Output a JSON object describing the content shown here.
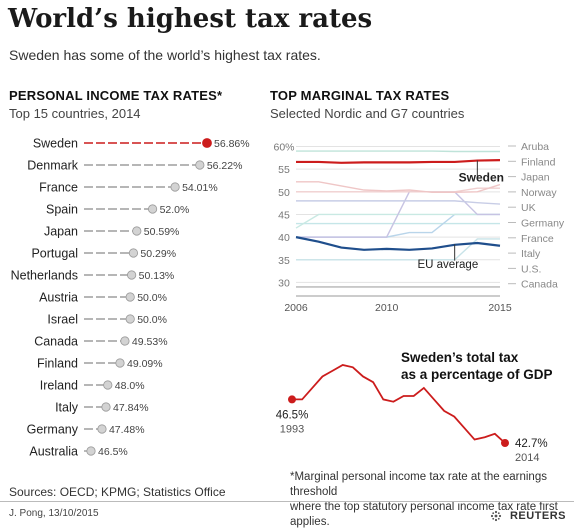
{
  "header": {
    "title": "World’s highest tax rates",
    "subtitle": "Sweden has some of the world’s highest tax rates."
  },
  "left": {
    "title": "PERSONAL INCOME TAX RATES*",
    "subtitle": "Top 15 countries, 2014"
  },
  "right": {
    "title": "TOP MARGINAL TAX RATES",
    "subtitle": "Selected Nordic and G7 countries",
    "sweden_label": "Sweden",
    "eu_label": "EU average"
  },
  "gdp": {
    "title_line1": "Sweden’s total tax",
    "title_line2": "as a percentage of GDP",
    "start_value": "46.5%",
    "start_year": "1993",
    "end_value": "42.7%",
    "end_year": "2014"
  },
  "footnote": {
    "line1": "*Marginal personal income tax rate at the earnings threshold",
    "line2": "where the top statutory personal income tax rate first applies."
  },
  "sources": "Sources: OECD; KPMG; Statistics Office",
  "credit": "J. Pong, 13/10/2015",
  "logo": "REUTERS",
  "colors": {
    "red": "#cc1c1c",
    "grey": "#aaaaaa",
    "blue": "#1f4e8c"
  },
  "chart_data": [
    {
      "type": "bar",
      "title": "PERSONAL INCOME TAX RATES*",
      "subtitle": "Top 15 countries, 2014",
      "categories": [
        "Sweden",
        "Denmark",
        "France",
        "Spain",
        "Japan",
        "Portugal",
        "Netherlands",
        "Austria",
        "Israel",
        "Canada",
        "Finland",
        "Ireland",
        "Italy",
        "Germany",
        "Australia"
      ],
      "values": [
        56.86,
        56.22,
        54.01,
        52.0,
        50.59,
        50.29,
        50.13,
        50.0,
        50.0,
        49.53,
        49.09,
        48.0,
        47.84,
        47.48,
        46.5
      ],
      "labels": [
        "56.86%",
        "56.22%",
        "54.01%",
        "52.0%",
        "50.59%",
        "50.29%",
        "50.13%",
        "50.0%",
        "50.0%",
        "49.53%",
        "49.09%",
        "48.0%",
        "47.84%",
        "47.48%",
        "46.5%"
      ],
      "highlight": "Sweden"
    },
    {
      "type": "line",
      "title": "TOP MARGINAL TAX RATES",
      "subtitle": "Selected Nordic and G7 countries",
      "x": [
        2006,
        2007,
        2008,
        2009,
        2010,
        2011,
        2012,
        2013,
        2014,
        2015
      ],
      "xticks": [
        "2006",
        "2010",
        "2015"
      ],
      "yticks": [
        "60%",
        "55",
        "50",
        "45",
        "40",
        "35",
        "30"
      ],
      "ylim": [
        27,
        61
      ],
      "series": [
        {
          "name": "Sweden",
          "values": [
            56.6,
            56.6,
            56.4,
            56.5,
            56.5,
            56.5,
            56.6,
            56.6,
            56.9,
            57.0
          ],
          "highlight": true
        },
        {
          "name": "Aruba",
          "values": [
            59.0,
            59.0,
            59.0,
            59.0,
            59.0,
            59.0,
            59.0,
            58.9,
            58.9,
            58.9
          ]
        },
        {
          "name": "Finland",
          "values": [
            52.2,
            52.2,
            51.3,
            50.4,
            50.2,
            50.4,
            49.9,
            49.9,
            50.0,
            51.6
          ]
        },
        {
          "name": "Japan",
          "values": [
            50.0,
            50.0,
            50.0,
            50.0,
            50.0,
            50.0,
            50.0,
            50.0,
            50.8,
            50.8
          ]
        },
        {
          "name": "Norway",
          "values": [
            48.0,
            48.0,
            48.0,
            48.0,
            48.0,
            48.0,
            48.0,
            48.0,
            47.6,
            47.3
          ]
        },
        {
          "name": "UK",
          "values": [
            40.0,
            40.0,
            40.0,
            40.0,
            40.0,
            50.0,
            50.0,
            50.0,
            45.0,
            45.0
          ]
        },
        {
          "name": "Germany",
          "values": [
            42.0,
            45.0,
            45.0,
            45.0,
            45.0,
            45.0,
            45.0,
            45.0,
            45.0,
            45.0
          ]
        },
        {
          "name": "France",
          "values": [
            40.0,
            40.0,
            40.0,
            40.0,
            40.0,
            41.0,
            41.0,
            45.0,
            45.0,
            45.0
          ]
        },
        {
          "name": "Italy",
          "values": [
            43.0,
            43.0,
            43.0,
            43.0,
            43.0,
            43.0,
            43.0,
            43.0,
            43.0,
            43.0
          ]
        },
        {
          "name": "U.S.",
          "values": [
            35.0,
            35.0,
            35.0,
            35.0,
            35.0,
            35.0,
            35.0,
            35.0,
            39.6,
            39.6
          ]
        },
        {
          "name": "Canada",
          "values": [
            29.0,
            29.0,
            29.0,
            29.0,
            29.0,
            29.0,
            29.0,
            29.0,
            29.0,
            29.0
          ]
        },
        {
          "name": "EU average",
          "values": [
            40.0,
            39.0,
            37.7,
            37.2,
            37.4,
            37.2,
            37.5,
            38.3,
            38.7,
            38.1
          ],
          "highlight": true
        }
      ]
    },
    {
      "type": "line",
      "title": "Sweden’s total tax as a percentage of GDP",
      "x": [
        1993,
        1994,
        1995,
        1996,
        1997,
        1998,
        1999,
        2000,
        2001,
        2002,
        2003,
        2004,
        2005,
        2006,
        2007,
        2008,
        2009,
        2010,
        2011,
        2012,
        2013,
        2014
      ],
      "values": [
        46.5,
        46.5,
        47.5,
        48.5,
        49.0,
        49.5,
        49.3,
        48.5,
        48.0,
        46.5,
        46.3,
        46.8,
        46.8,
        47.5,
        46.5,
        45.5,
        45.0,
        44.0,
        43.0,
        43.2,
        43.5,
        42.7
      ],
      "start_label": "46.5%",
      "end_label": "42.7%"
    }
  ]
}
